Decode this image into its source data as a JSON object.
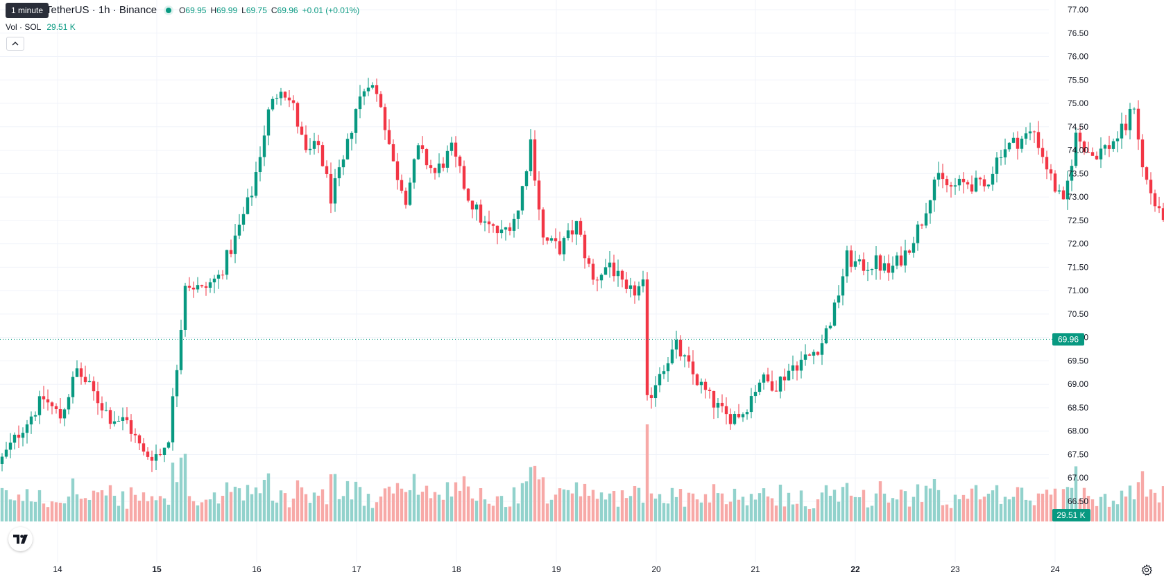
{
  "header": {
    "tooltip": "1 minute",
    "symbol": "TetherUS · 1h · Binance",
    "ohlc": {
      "o_label": "O",
      "o_value": "69.95",
      "h_label": "H",
      "h_value": "69.99",
      "l_label": "L",
      "l_value": "69.75",
      "c_label": "C",
      "c_value": "69.96",
      "change": "+0.01 (+0.01%)"
    },
    "volume_label": "Vol · SOL",
    "volume_value": "29.51 K"
  },
  "price_axis": {
    "ticks": [
      "77.00",
      "76.50",
      "76.00",
      "75.50",
      "75.00",
      "74.50",
      "74.00",
      "73.50",
      "73.00",
      "72.50",
      "72.00",
      "71.50",
      "71.00",
      "70.50",
      "70.00",
      "69.50",
      "69.00",
      "68.50",
      "68.00",
      "67.50",
      "67.00",
      "66.50"
    ],
    "last_price": "69.96",
    "volume_badge": "29.51 K"
  },
  "time_axis": {
    "labels": [
      {
        "text": "14",
        "bold": false
      },
      {
        "text": "15",
        "bold": true
      },
      {
        "text": "16",
        "bold": false
      },
      {
        "text": "17",
        "bold": false
      },
      {
        "text": "18",
        "bold": false
      },
      {
        "text": "19",
        "bold": false
      },
      {
        "text": "20",
        "bold": false
      },
      {
        "text": "21",
        "bold": false
      },
      {
        "text": "22",
        "bold": true
      },
      {
        "text": "23",
        "bold": false
      },
      {
        "text": "24",
        "bold": false
      }
    ]
  },
  "colors": {
    "up": "#089981",
    "down": "#F23645",
    "up_volume": "#92D2CC",
    "down_volume": "#F7A9A7",
    "grid": "#F0F3FA",
    "text": "#131722"
  },
  "icons": {
    "logo": "tradingview-logo",
    "settings": "gear-icon",
    "collapse": "chevron-up-icon",
    "status": "market-open-dot"
  },
  "chart_data": {
    "type": "candlestick",
    "interval": "1h",
    "ylim": [
      66.2,
      77.1
    ],
    "last_price": 69.96,
    "keypoints": [
      {
        "t": 0,
        "c": 67.4
      },
      {
        "t": 5,
        "c": 68.1
      },
      {
        "t": 10,
        "c": 68.7
      },
      {
        "t": 14,
        "c": 68.3
      },
      {
        "t": 18,
        "c": 69.3
      },
      {
        "t": 22,
        "c": 68.8
      },
      {
        "t": 26,
        "c": 68.3
      },
      {
        "t": 30,
        "c": 68.2
      },
      {
        "t": 34,
        "c": 67.5
      },
      {
        "t": 38,
        "c": 67.5
      },
      {
        "t": 40,
        "c": 67.9
      },
      {
        "t": 42,
        "c": 69.4
      },
      {
        "t": 44,
        "c": 71.2
      },
      {
        "t": 48,
        "c": 71.0
      },
      {
        "t": 52,
        "c": 71.3
      },
      {
        "t": 56,
        "c": 72.1
      },
      {
        "t": 60,
        "c": 73.1
      },
      {
        "t": 64,
        "c": 74.8
      },
      {
        "t": 67,
        "c": 75.4
      },
      {
        "t": 70,
        "c": 74.9
      },
      {
        "t": 73,
        "c": 73.9
      },
      {
        "t": 76,
        "c": 74.1
      },
      {
        "t": 79,
        "c": 73.0
      },
      {
        "t": 82,
        "c": 73.7
      },
      {
        "t": 85,
        "c": 74.9
      },
      {
        "t": 88,
        "c": 75.5
      },
      {
        "t": 91,
        "c": 75.0
      },
      {
        "t": 94,
        "c": 73.7
      },
      {
        "t": 97,
        "c": 73.0
      },
      {
        "t": 100,
        "c": 74.0
      },
      {
        "t": 104,
        "c": 73.5
      },
      {
        "t": 108,
        "c": 74.0
      },
      {
        "t": 112,
        "c": 73.0
      },
      {
        "t": 116,
        "c": 72.4
      },
      {
        "t": 120,
        "c": 72.2
      },
      {
        "t": 124,
        "c": 72.7
      },
      {
        "t": 127,
        "c": 74.2
      },
      {
        "t": 130,
        "c": 72.1
      },
      {
        "t": 134,
        "c": 71.9
      },
      {
        "t": 138,
        "c": 72.4
      },
      {
        "t": 142,
        "c": 71.2
      },
      {
        "t": 146,
        "c": 71.6
      },
      {
        "t": 150,
        "c": 70.9
      },
      {
        "t": 154,
        "c": 71.1
      },
      {
        "t": 155,
        "c": 68.6
      },
      {
        "t": 158,
        "c": 69.3
      },
      {
        "t": 162,
        "c": 69.8
      },
      {
        "t": 166,
        "c": 69.2
      },
      {
        "t": 170,
        "c": 68.7
      },
      {
        "t": 174,
        "c": 68.3
      },
      {
        "t": 178,
        "c": 68.4
      },
      {
        "t": 182,
        "c": 69.1
      },
      {
        "t": 186,
        "c": 69.0
      },
      {
        "t": 190,
        "c": 69.4
      },
      {
        "t": 194,
        "c": 69.6
      },
      {
        "t": 197,
        "c": 69.9
      },
      {
        "t": 200,
        "c": 70.6
      },
      {
        "t": 203,
        "c": 71.7
      },
      {
        "t": 206,
        "c": 71.5
      },
      {
        "t": 210,
        "c": 71.6
      },
      {
        "t": 213,
        "c": 71.4
      },
      {
        "t": 217,
        "c": 71.8
      },
      {
        "t": 221,
        "c": 72.5
      },
      {
        "t": 224,
        "c": 73.4
      },
      {
        "t": 228,
        "c": 73.2
      },
      {
        "t": 232,
        "c": 73.3
      },
      {
        "t": 236,
        "c": 73.2
      },
      {
        "t": 240,
        "c": 74.0
      },
      {
        "t": 244,
        "c": 74.2
      },
      {
        "t": 248,
        "c": 74.4
      },
      {
        "t": 252,
        "c": 73.4
      },
      {
        "t": 255,
        "c": 72.8
      },
      {
        "t": 258,
        "c": 74.3
      },
      {
        "t": 262,
        "c": 73.9
      },
      {
        "t": 266,
        "c": 74.1
      },
      {
        "t": 270,
        "c": 74.5
      },
      {
        "t": 272,
        "c": 75.0
      },
      {
        "t": 274,
        "c": 73.6
      },
      {
        "t": 278,
        "c": 72.6
      },
      {
        "t": 282,
        "c": 72.7
      },
      {
        "t": 286,
        "c": 71.7
      },
      {
        "t": 290,
        "c": 71.9
      },
      {
        "t": 293,
        "c": 70.8
      },
      {
        "t": 296,
        "c": 69.5
      },
      {
        "t": 299,
        "c": 68.7
      },
      {
        "t": 303,
        "c": 69.2
      },
      {
        "t": 306,
        "c": 68.9
      },
      {
        "t": 310,
        "c": 68.7
      },
      {
        "t": 314,
        "c": 69.2
      },
      {
        "t": 318,
        "c": 69.8
      },
      {
        "t": 320,
        "c": 69.5
      },
      {
        "t": 323,
        "c": 69.96
      }
    ],
    "volume_ylim": [
      0,
      400
    ]
  }
}
